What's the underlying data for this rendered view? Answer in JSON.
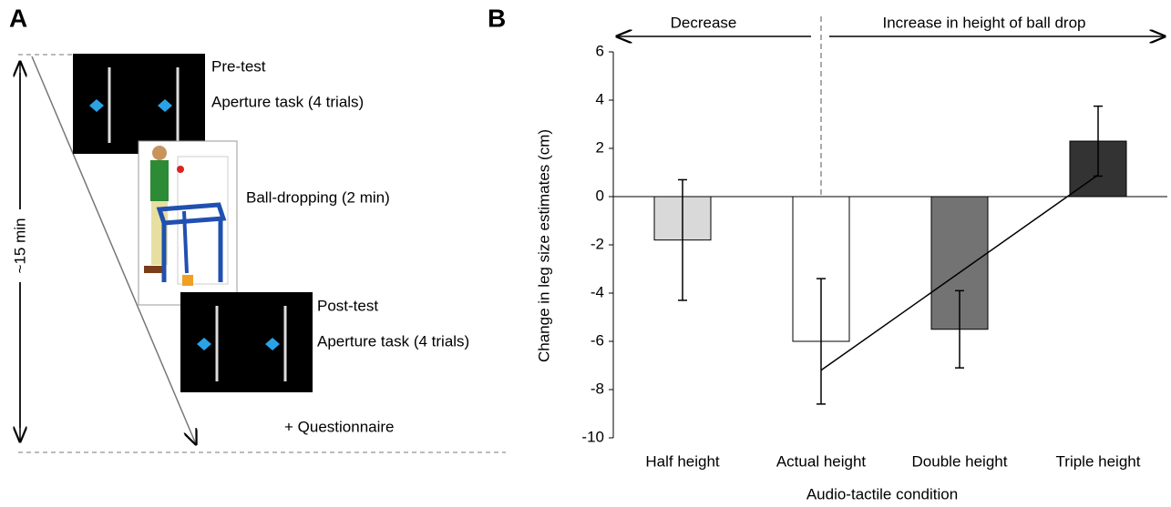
{
  "panel_a": {
    "label": "A",
    "duration": "~15 min",
    "pre_test": "Pre-test",
    "pre_task": "Aperture task (4 trials)",
    "ball_dropping": "Ball-dropping (2 min)",
    "post_test": "Post-test",
    "post_task": "Aperture task (4 trials)",
    "questionnaire": "+ Questionnaire"
  },
  "chart_data": {
    "type": "bar",
    "panel_label": "B",
    "x_label": "Audio-tactile condition",
    "y_label": "Change in leg size estimates (cm)",
    "annotations": {
      "decrease": "Decrease",
      "increase": "Increase in height of ball drop"
    },
    "categories": [
      "Half height",
      "Actual height",
      "Double height",
      "Triple height"
    ],
    "values": [
      -1.8,
      -6.0,
      -5.5,
      2.3
    ],
    "errors": [
      2.5,
      2.6,
      1.6,
      1.45
    ],
    "colors": [
      "#d9d9d9",
      "#ffffff",
      "#737373",
      "#333333"
    ],
    "trend": [
      null,
      -7.2,
      null,
      0.9
    ],
    "ylim": [
      -10,
      6
    ],
    "yticks": [
      -10,
      -8,
      -6,
      -4,
      -2,
      0,
      2,
      4,
      6
    ]
  }
}
